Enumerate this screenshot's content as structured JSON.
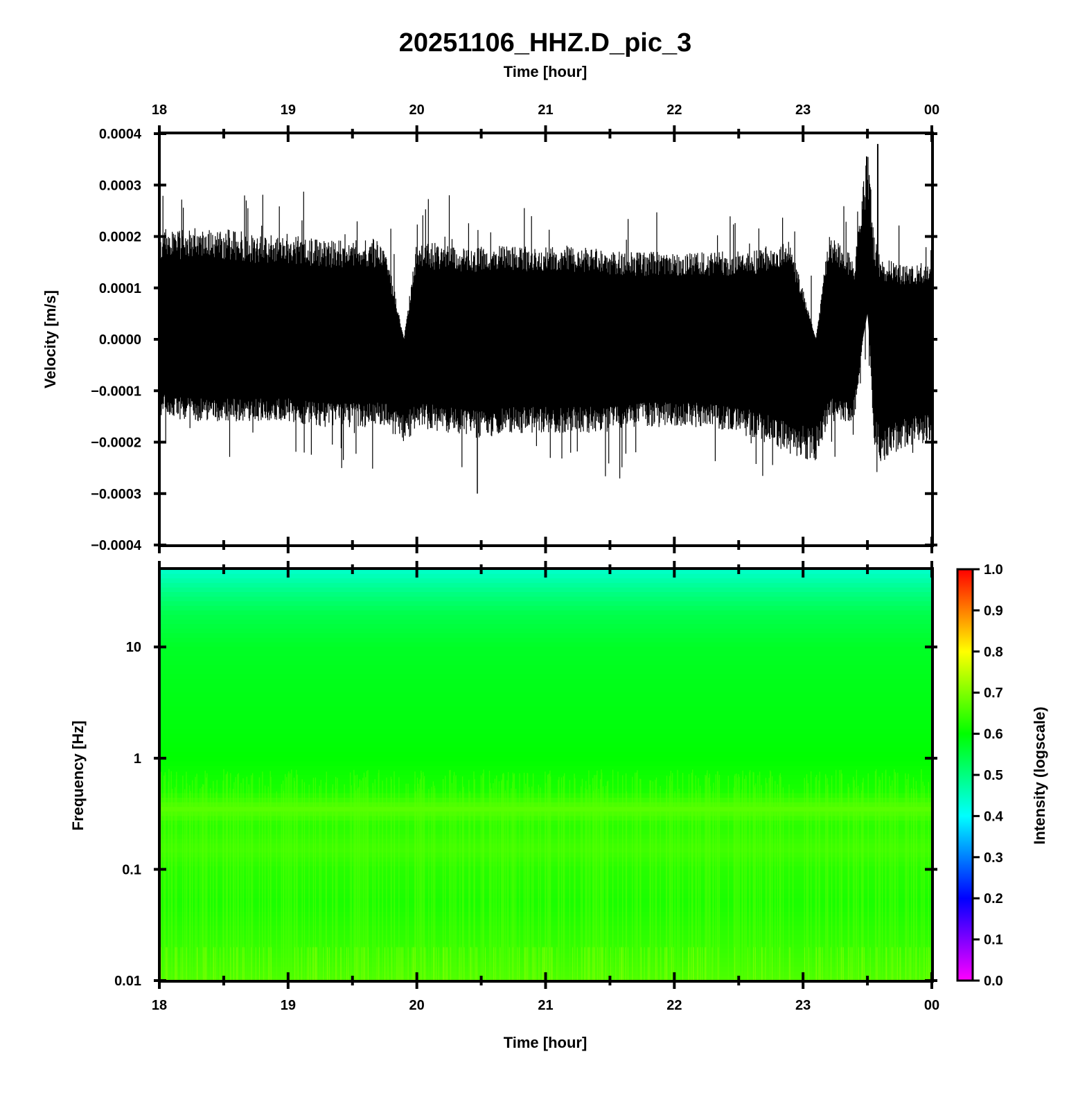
{
  "chart_data": [
    {
      "type": "line",
      "title": "20251106_HHZ.D_pic_3",
      "top_xlabel": "Time [hour]",
      "ylabel": "Velocity [m/s]",
      "x_ticks": [
        "18",
        "19",
        "20",
        "21",
        "22",
        "23",
        "00"
      ],
      "x_range_hours": [
        18,
        24
      ],
      "y_ticks": [
        "0.0004",
        "0.0003",
        "0.0002",
        "0.0001",
        "0.0000",
        "−0.0001",
        "−0.0002",
        "−0.0003",
        "−0.0004"
      ],
      "ylim": [
        -0.0004,
        0.0004
      ],
      "series": [
        {
          "line_color": "#000000",
          "x": [
            18.0,
            18.25,
            18.5,
            18.75,
            19.0,
            19.25,
            19.5,
            19.75,
            19.9,
            20.0,
            20.25,
            20.5,
            20.75,
            21.0,
            21.25,
            21.5,
            21.75,
            22.0,
            22.25,
            22.5,
            22.75,
            22.9,
            23.1,
            23.2,
            23.3,
            23.4,
            23.5,
            23.55,
            23.6,
            23.75,
            23.9,
            24.0
          ],
          "upper": [
            0.00019,
            0.00019,
            0.00019,
            0.00018,
            0.00018,
            0.00017,
            0.00017,
            0.00017,
            0.0,
            0.00017,
            0.00016,
            0.00016,
            0.00016,
            0.00016,
            0.00016,
            0.00015,
            0.00015,
            0.00015,
            0.00015,
            0.00015,
            0.00016,
            0.00017,
            0.0,
            0.00018,
            0.00016,
            0.00014,
            0.00035,
            0.00018,
            0.00014,
            0.00013,
            0.00013,
            0.00013
          ],
          "lower": [
            -0.00013,
            -0.00014,
            -0.00014,
            -0.00014,
            -0.00014,
            -0.00015,
            -0.00015,
            -0.00015,
            -0.00018,
            -0.00015,
            -0.00016,
            -0.00017,
            -0.00016,
            -0.00016,
            -0.00016,
            -0.00016,
            -0.00015,
            -0.00015,
            -0.00015,
            -0.00016,
            -0.00018,
            -0.0002,
            -0.00021,
            -0.00014,
            -0.00014,
            -0.00014,
            8e-05,
            -0.00018,
            -0.00021,
            -0.00019,
            -0.00018,
            -0.00018
          ],
          "peak_upper": 0.00038,
          "peak_lower": -0.0003
        }
      ]
    },
    {
      "type": "heatmap",
      "xlabel": "Time [hour]",
      "ylabel": "Frequency [Hz]",
      "x_ticks": [
        "18",
        "19",
        "20",
        "21",
        "22",
        "23",
        "00"
      ],
      "x_range_hours": [
        18,
        24
      ],
      "y_scale": "log",
      "y_ticks": [
        "10",
        "1",
        "0.1",
        "0.01"
      ],
      "ylim": [
        0.01,
        50
      ],
      "intensity_profile": {
        "frequency_hz": [
          50,
          30,
          20,
          10,
          5,
          2,
          1,
          0.5,
          0.35,
          0.25,
          0.15,
          0.1,
          0.05,
          0.02,
          0.01
        ],
        "intensity": [
          0.44,
          0.5,
          0.54,
          0.57,
          0.58,
          0.59,
          0.6,
          0.62,
          0.67,
          0.63,
          0.65,
          0.63,
          0.62,
          0.64,
          0.66
        ]
      },
      "colorbar": {
        "label": "Intensity (logscale)",
        "range": [
          0.0,
          1.0
        ],
        "ticks": [
          "1.0",
          "0.9",
          "0.8",
          "0.7",
          "0.6",
          "0.5",
          "0.4",
          "0.3",
          "0.2",
          "0.1",
          "0.0"
        ],
        "colors": [
          "#ff00ff",
          "#0000ff",
          "#00ffff",
          "#00ff00",
          "#ffff00",
          "#ff0000"
        ]
      }
    }
  ]
}
